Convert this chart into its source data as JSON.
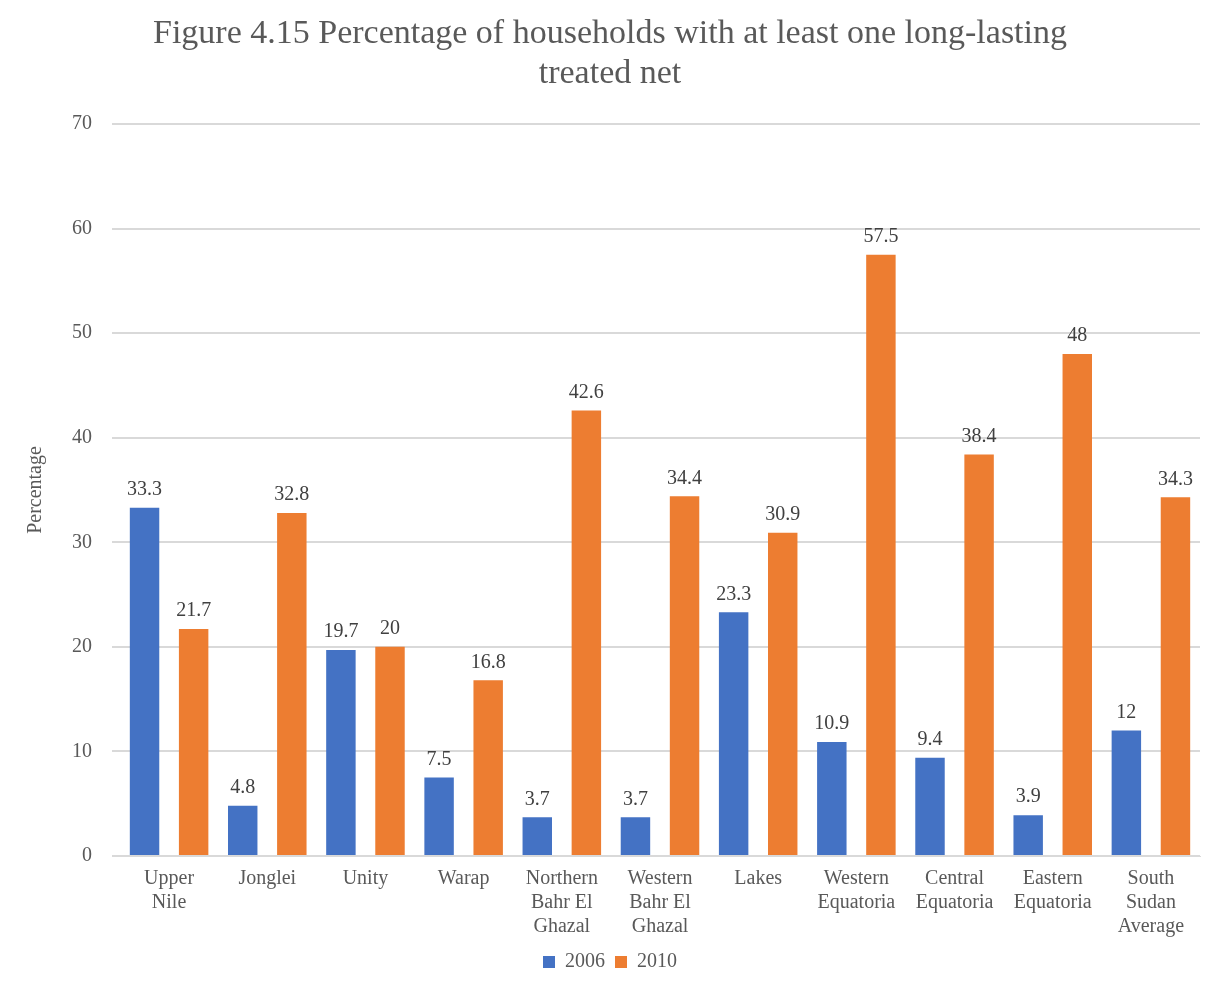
{
  "chart_data": {
    "type": "bar",
    "title": "Figure 4.15 Percentage of households with at least one long-lasting treated net",
    "ylabel": "Percentage",
    "categories": [
      "Upper Nile",
      "Jonglei",
      "Unity",
      "Warap",
      "Northern Bahr El Ghazal",
      "Western Bahr El Ghazal",
      "Lakes",
      "Western Equatoria",
      "Central Equatoria",
      "Eastern Equatoria",
      "South Sudan Average"
    ],
    "series": [
      {
        "name": "2006",
        "color": "#4472c4",
        "values": [
          33.3,
          4.8,
          19.7,
          7.5,
          3.7,
          3.7,
          23.3,
          10.9,
          9.4,
          3.9,
          12
        ]
      },
      {
        "name": "2010",
        "color": "#ed7d31",
        "values": [
          21.7,
          32.8,
          20,
          16.8,
          42.6,
          34.4,
          30.9,
          57.5,
          38.4,
          48,
          34.3
        ]
      }
    ],
    "ylim": [
      0,
      70
    ],
    "yticks": [
      0,
      10,
      20,
      30,
      40,
      50,
      60,
      70
    ],
    "grid": "y",
    "legend": "bottom",
    "data_labels": true
  }
}
